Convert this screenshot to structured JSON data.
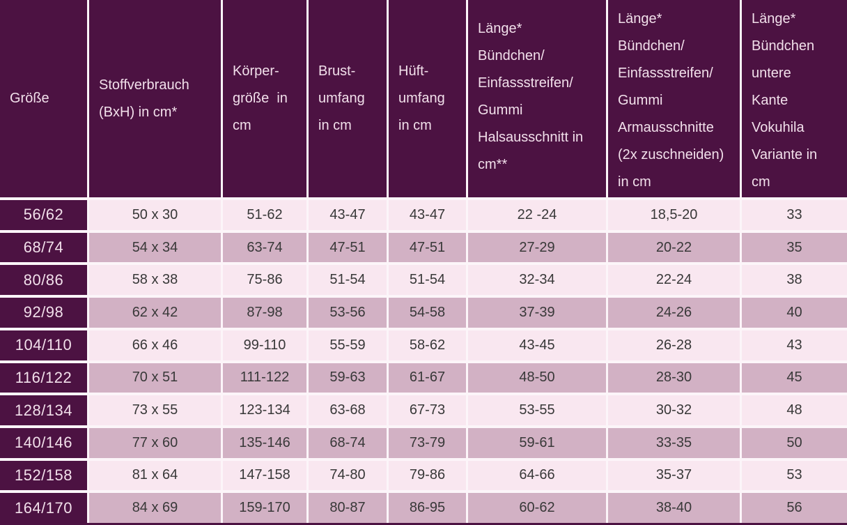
{
  "chart_data": {
    "type": "table",
    "columns": [
      "Größe",
      "Stoffverbrauch (BxH) in cm*",
      "Körpergröße in cm",
      "Brustumfang in cm",
      "Hüftumfang in cm",
      "Länge* Bündchen/Einfassstreifen/Gummi Halsausschnitt in cm**",
      "Länge* Bündchen/Einfassstreifen/Gummi Armausschnitte (2x zuschneiden) in cm",
      "Länge* Bündchen untere Kante Vokuhila Variante in cm"
    ],
    "header_cells": [
      {
        "lines": [
          "Größe"
        ]
      },
      {
        "lines": [
          "Stoffverbrauch",
          "(BxH) in cm*"
        ]
      },
      {
        "lines": [
          "Körper-",
          "größe  in",
          "cm"
        ]
      },
      {
        "lines": [
          "Brust-",
          "umfang",
          "in cm"
        ]
      },
      {
        "lines": [
          "Hüft-",
          "umfang",
          "in cm"
        ]
      },
      {
        "lines": [
          "Länge*",
          "Bündchen/",
          "Einfassstreifen/",
          "Gummi",
          "Halsausschnitt in",
          "cm**"
        ]
      },
      {
        "lines": [
          "Länge*",
          "Bündchen/",
          "Einfassstreifen/",
          "Gummi",
          "Armausschnitte",
          "(2x zuschneiden)",
          "in cm"
        ]
      },
      {
        "lines": [
          "Länge*",
          "Bündchen",
          "untere",
          "Kante",
          "Vokuhila",
          "Variante in",
          "cm"
        ]
      }
    ],
    "rows": [
      [
        "56/62",
        "50 x 30",
        "51-62",
        "43-47",
        "43-47",
        "22 -24",
        "18,5-20",
        "33"
      ],
      [
        "68/74",
        "54 x 34",
        "63-74",
        "47-51",
        "47-51",
        "27-29",
        "20-22",
        "35"
      ],
      [
        "80/86",
        "58 x 38",
        "75-86",
        "51-54",
        "51-54",
        "32-34",
        "22-24",
        "38"
      ],
      [
        "92/98",
        "62 x 42",
        "87-98",
        "53-56",
        "54-58",
        "37-39",
        "24-26",
        "40"
      ],
      [
        "104/110",
        "66 x 46",
        "99-110",
        "55-59",
        "58-62",
        "43-45",
        "26-28",
        "43"
      ],
      [
        "116/122",
        "70 x 51",
        "111-122",
        "59-63",
        "61-67",
        "48-50",
        "28-30",
        "45"
      ],
      [
        "128/134",
        "73 x 55",
        "123-134",
        "63-68",
        "67-73",
        "53-55",
        "30-32",
        "48"
      ],
      [
        "140/146",
        "77 x 60",
        "135-146",
        "68-74",
        "73-79",
        "59-61",
        "33-35",
        "50"
      ],
      [
        "152/158",
        "81 x 64",
        "147-158",
        "74-80",
        "79-86",
        "64-66",
        "35-37",
        "53"
      ],
      [
        "164/170",
        "84 x 69",
        "159-170",
        "80-87",
        "86-95",
        "60-62",
        "38-40",
        "56"
      ]
    ]
  },
  "colors": {
    "header_bg": "#4C1242",
    "row_light": "#F9E7F0",
    "row_dark": "#D2B1C4",
    "divider": "#FCF5F9",
    "header_text": "#F2E0EB",
    "cell_text": "#383838"
  }
}
